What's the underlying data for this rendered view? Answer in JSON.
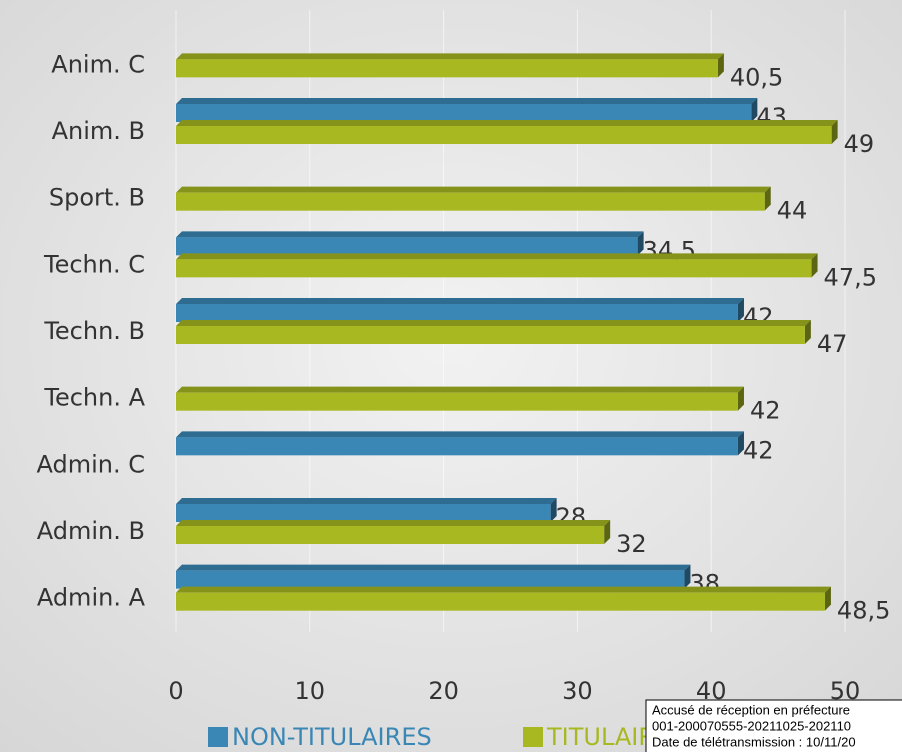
{
  "chart_data": {
    "type": "bar",
    "orientation": "horizontal",
    "categories": [
      "Anim. C",
      "Anim. B",
      "Sport. B",
      "Techn. C",
      "Techn. B",
      "Techn. A",
      "Admin. C",
      "Admin. B",
      "Admin. A"
    ],
    "series": [
      {
        "name": "NON-TITULAIRES",
        "color": "#3a87b5",
        "values": [
          null,
          43,
          null,
          34.5,
          42,
          null,
          42,
          28,
          38
        ],
        "value_labels": [
          null,
          "43",
          null,
          "34,5",
          "42",
          null,
          "42",
          "28",
          "38"
        ]
      },
      {
        "name": "TITULAIRES",
        "color": "#a8b820",
        "values": [
          40.5,
          49,
          44,
          47.5,
          47,
          42,
          null,
          32,
          48.5
        ],
        "value_labels": [
          "40,5",
          "49",
          "44",
          "47,5",
          "47",
          "42",
          null,
          "32",
          "48,5"
        ]
      }
    ],
    "xlim": [
      0,
      50
    ],
    "xticks": [
      0,
      10,
      20,
      30,
      40,
      50
    ],
    "grid": true,
    "legend": "bottom"
  },
  "stamp": {
    "lines": [
      "Accusé de réception en préfecture",
      "001-200070555-20211025-202110",
      "Date de télétransmission : 10/11/20"
    ]
  }
}
